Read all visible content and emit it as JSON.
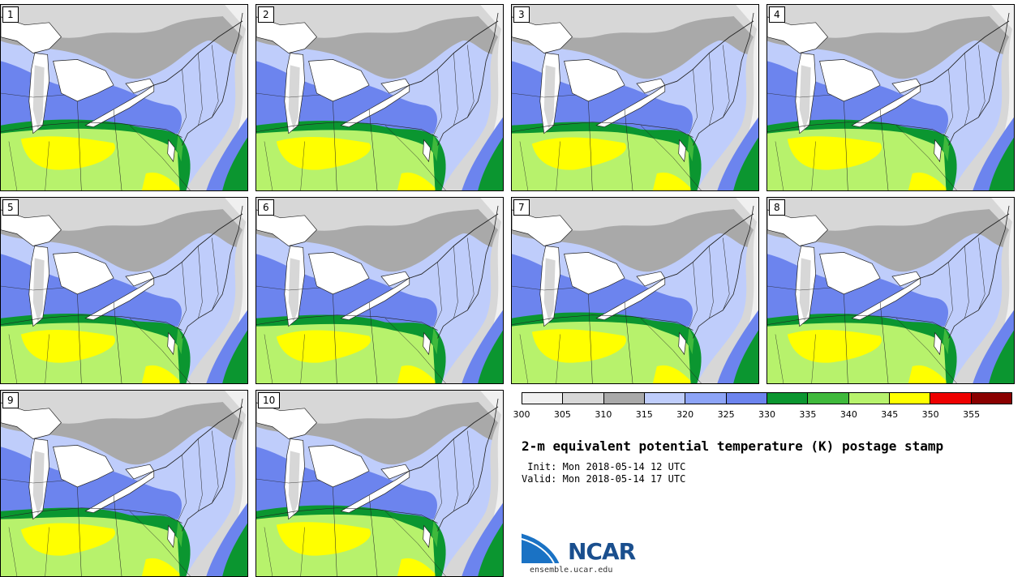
{
  "figure": {
    "title": "2-m equivalent potential temperature (K) postage stamp",
    "init": " Init: Mon 2018-05-14 12 UTC",
    "valid": "Valid: Mon 2018-05-14 17 UTC",
    "site": "ensemble.ucar.edu",
    "logo_text": "NCAR"
  },
  "members": [
    "1",
    "2",
    "3",
    "4",
    "5",
    "6",
    "7",
    "8",
    "9",
    "10"
  ],
  "colorbar": {
    "ticks": [
      "300",
      "305",
      "310",
      "315",
      "320",
      "325",
      "330",
      "335",
      "340",
      "345",
      "350",
      "355"
    ],
    "colors": [
      "#f0f0f0",
      "#d7d7d7",
      "#a9a9a9",
      "#bfcdfb",
      "#8da4f7",
      "#6c84ee",
      "#0b9630",
      "#3fb93c",
      "#b7f26c",
      "#ffff00",
      "#ee0000",
      "#8a0000"
    ]
  },
  "colors": {
    "lake": "#ffffff",
    "border": "#222222",
    "ncar_blue": "#1a4f8e"
  }
}
